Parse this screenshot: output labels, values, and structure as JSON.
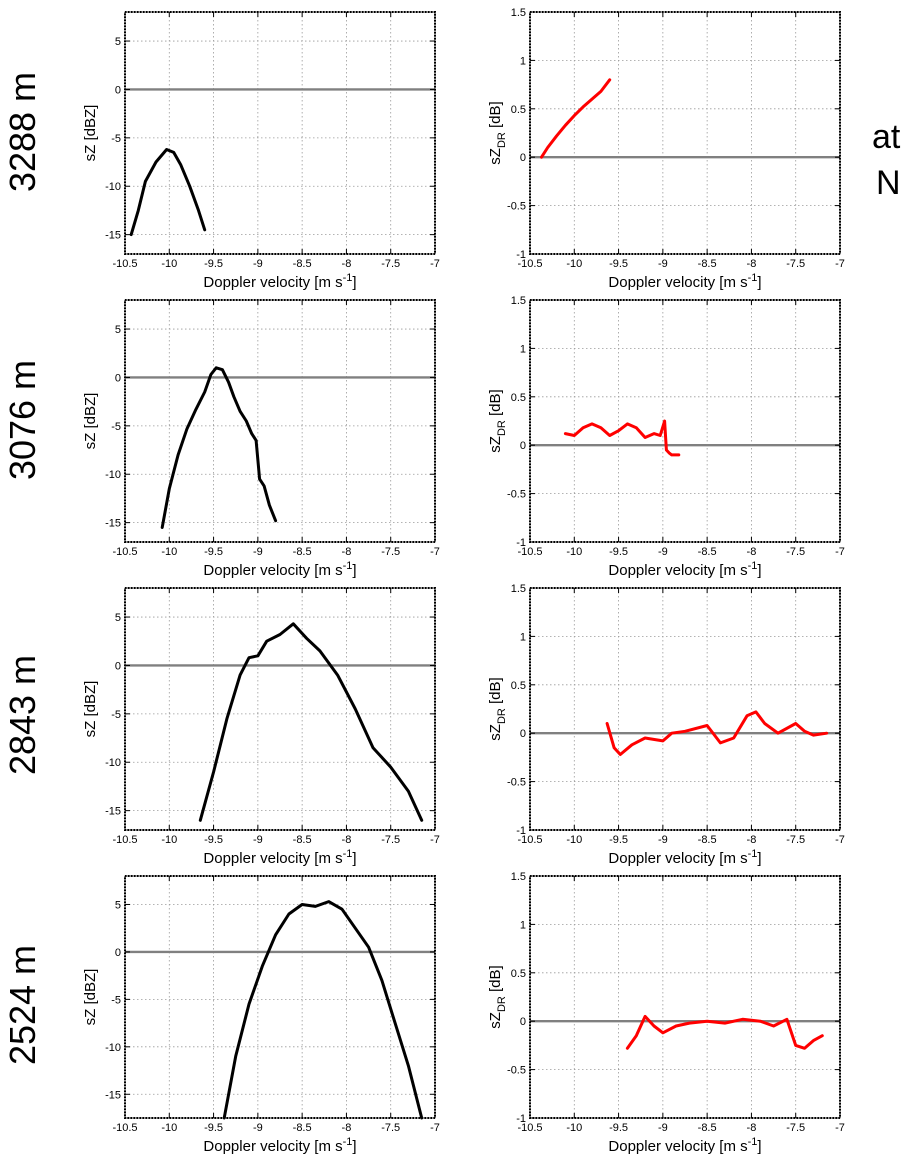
{
  "row_labels": [
    "3288 m",
    "3076 m",
    "2843 m",
    "2524 m"
  ],
  "side_text": [
    "at",
    "N"
  ],
  "chart_data": [
    {
      "type": "line",
      "row": 0,
      "col": 0,
      "xlabel": "Doppler velocity [m s-1]",
      "ylabel": "sZ [dBZ]",
      "xlim": [
        -10.5,
        -7
      ],
      "ylim": [
        -17,
        8
      ],
      "xticks": [
        -10.5,
        -10,
        -9.5,
        -9,
        -8.5,
        -8,
        -7.5,
        -7
      ],
      "yticks": [
        -15,
        -10,
        -5,
        0,
        5
      ],
      "grid": true,
      "hline": 0,
      "color": "#000000",
      "x": [
        -10.43,
        -10.35,
        -10.27,
        -10.15,
        -10.03,
        -9.95,
        -9.87,
        -9.77,
        -9.67,
        -9.6
      ],
      "y": [
        -15.0,
        -12.5,
        -9.5,
        -7.5,
        -6.2,
        -6.5,
        -7.8,
        -10.0,
        -12.5,
        -14.5
      ]
    },
    {
      "type": "line",
      "row": 0,
      "col": 1,
      "xlabel": "Doppler velocity [m s-1]",
      "ylabel": "sZDR [dB]",
      "xlim": [
        -10.5,
        -7
      ],
      "ylim": [
        -1,
        1.5
      ],
      "xticks": [
        -10.5,
        -10,
        -9.5,
        -9,
        -8.5,
        -8,
        -7.5,
        -7
      ],
      "yticks": [
        -1,
        -0.5,
        0,
        0.5,
        1,
        1.5
      ],
      "grid": true,
      "hline": 0,
      "color": "#ff0000",
      "x": [
        -10.37,
        -10.3,
        -10.2,
        -10.1,
        -10.0,
        -9.9,
        -9.8,
        -9.7,
        -9.6
      ],
      "y": [
        0.0,
        0.1,
        0.22,
        0.33,
        0.43,
        0.52,
        0.6,
        0.68,
        0.8
      ]
    },
    {
      "type": "line",
      "row": 1,
      "col": 0,
      "xlabel": "Doppler velocity [m s-1]",
      "ylabel": "sZ [dBZ]",
      "xlim": [
        -10.5,
        -7
      ],
      "ylim": [
        -17,
        8
      ],
      "xticks": [
        -10.5,
        -10,
        -9.5,
        -9,
        -8.5,
        -8,
        -7.5,
        -7
      ],
      "yticks": [
        -15,
        -10,
        -5,
        0,
        5
      ],
      "grid": true,
      "hline": 0,
      "color": "#000000",
      "x": [
        -10.08,
        -10.0,
        -9.9,
        -9.8,
        -9.7,
        -9.6,
        -9.53,
        -9.47,
        -9.4,
        -9.33,
        -9.27,
        -9.2,
        -9.13,
        -9.07,
        -9.02,
        -8.98,
        -8.93,
        -8.87,
        -8.8
      ],
      "y": [
        -15.5,
        -11.5,
        -8.0,
        -5.3,
        -3.3,
        -1.5,
        0.3,
        1.0,
        0.8,
        -0.5,
        -2.0,
        -3.5,
        -4.5,
        -5.8,
        -6.5,
        -10.5,
        -11.2,
        -13.2,
        -14.8
      ]
    },
    {
      "type": "line",
      "row": 1,
      "col": 1,
      "xlabel": "Doppler velocity [m s-1]",
      "ylabel": "sZDR [dB]",
      "xlim": [
        -10.5,
        -7
      ],
      "ylim": [
        -1,
        1.5
      ],
      "xticks": [
        -10.5,
        -10,
        -9.5,
        -9,
        -8.5,
        -8,
        -7.5,
        -7
      ],
      "yticks": [
        -1,
        -0.5,
        0,
        0.5,
        1,
        1.5
      ],
      "grid": true,
      "hline": 0,
      "color": "#ff0000",
      "x": [
        -10.1,
        -10.0,
        -9.9,
        -9.8,
        -9.7,
        -9.6,
        -9.5,
        -9.4,
        -9.3,
        -9.2,
        -9.1,
        -9.03,
        -8.98,
        -8.96,
        -8.93,
        -8.9,
        -8.82
      ],
      "y": [
        0.12,
        0.1,
        0.18,
        0.22,
        0.18,
        0.1,
        0.15,
        0.22,
        0.18,
        0.08,
        0.12,
        0.1,
        0.25,
        -0.05,
        -0.08,
        -0.1,
        -0.1
      ]
    },
    {
      "type": "line",
      "row": 2,
      "col": 0,
      "xlabel": "Doppler velocity [m s-1]",
      "ylabel": "sZ [dBZ]",
      "xlim": [
        -10.5,
        -7
      ],
      "ylim": [
        -17,
        8
      ],
      "xticks": [
        -10.5,
        -10,
        -9.5,
        -9,
        -8.5,
        -8,
        -7.5,
        -7
      ],
      "yticks": [
        -15,
        -10,
        -5,
        0,
        5
      ],
      "grid": true,
      "hline": 0,
      "color": "#000000",
      "x": [
        -9.65,
        -9.5,
        -9.35,
        -9.2,
        -9.1,
        -9.0,
        -8.9,
        -8.75,
        -8.6,
        -8.45,
        -8.3,
        -8.1,
        -7.9,
        -7.7,
        -7.5,
        -7.3,
        -7.15
      ],
      "y": [
        -16.0,
        -11.0,
        -5.5,
        -1.0,
        0.8,
        1.0,
        2.5,
        3.2,
        4.3,
        2.8,
        1.5,
        -1.0,
        -4.5,
        -8.5,
        -10.5,
        -13.0,
        -16.0
      ]
    },
    {
      "type": "line",
      "row": 2,
      "col": 1,
      "xlabel": "Doppler velocity [m s-1]",
      "ylabel": "sZDR [dB]",
      "xlim": [
        -10.5,
        -7
      ],
      "ylim": [
        -1,
        1.5
      ],
      "xticks": [
        -10.5,
        -10,
        -9.5,
        -9,
        -8.5,
        -8,
        -7.5,
        -7
      ],
      "yticks": [
        -1,
        -0.5,
        0,
        0.5,
        1,
        1.5
      ],
      "grid": true,
      "hline": 0,
      "color": "#ff0000",
      "x": [
        -9.63,
        -9.55,
        -9.48,
        -9.35,
        -9.2,
        -9.0,
        -8.9,
        -8.75,
        -8.5,
        -8.35,
        -8.2,
        -8.05,
        -7.95,
        -7.85,
        -7.7,
        -7.5,
        -7.4,
        -7.3,
        -7.15
      ],
      "y": [
        0.1,
        -0.15,
        -0.22,
        -0.12,
        -0.05,
        -0.08,
        0.0,
        0.02,
        0.08,
        -0.1,
        -0.05,
        0.18,
        0.22,
        0.1,
        0.0,
        0.1,
        0.02,
        -0.02,
        0.0
      ]
    },
    {
      "type": "line",
      "row": 3,
      "col": 0,
      "xlabel": "Doppler velocity [m s-1]",
      "ylabel": "sZ [dBZ]",
      "xlim": [
        -10.5,
        -7
      ],
      "ylim": [
        -17.5,
        8
      ],
      "xticks": [
        -10.5,
        -10,
        -9.5,
        -9,
        -8.5,
        -8,
        -7.5,
        -7
      ],
      "yticks": [
        -15,
        -10,
        -5,
        0,
        5
      ],
      "grid": true,
      "hline": 0,
      "color": "#000000",
      "x": [
        -9.38,
        -9.25,
        -9.1,
        -8.95,
        -8.8,
        -8.65,
        -8.5,
        -8.35,
        -8.2,
        -8.05,
        -7.9,
        -7.75,
        -7.6,
        -7.45,
        -7.3,
        -7.15
      ],
      "y": [
        -17.5,
        -11.0,
        -5.5,
        -1.5,
        1.8,
        4.0,
        5.0,
        4.8,
        5.3,
        4.5,
        2.5,
        0.5,
        -3.0,
        -7.5,
        -12.0,
        -17.5
      ]
    },
    {
      "type": "line",
      "row": 3,
      "col": 1,
      "xlabel": "Doppler velocity [m s-1]",
      "ylabel": "sZDR [dB]",
      "xlim": [
        -10.5,
        -7
      ],
      "ylim": [
        -1,
        1.5
      ],
      "xticks": [
        -10.5,
        -10,
        -9.5,
        -9,
        -8.5,
        -8,
        -7.5,
        -7
      ],
      "yticks": [
        -1,
        -0.5,
        0,
        0.5,
        1,
        1.5
      ],
      "grid": true,
      "hline": 0,
      "color": "#ff0000",
      "x": [
        -9.4,
        -9.3,
        -9.2,
        -9.1,
        -9.0,
        -8.85,
        -8.7,
        -8.5,
        -8.3,
        -8.1,
        -7.9,
        -7.75,
        -7.6,
        -7.5,
        -7.4,
        -7.3,
        -7.2
      ],
      "y": [
        -0.28,
        -0.15,
        0.05,
        -0.05,
        -0.12,
        -0.05,
        -0.02,
        0.0,
        -0.02,
        0.02,
        0.0,
        -0.05,
        0.02,
        -0.25,
        -0.28,
        -0.2,
        -0.15
      ]
    }
  ]
}
